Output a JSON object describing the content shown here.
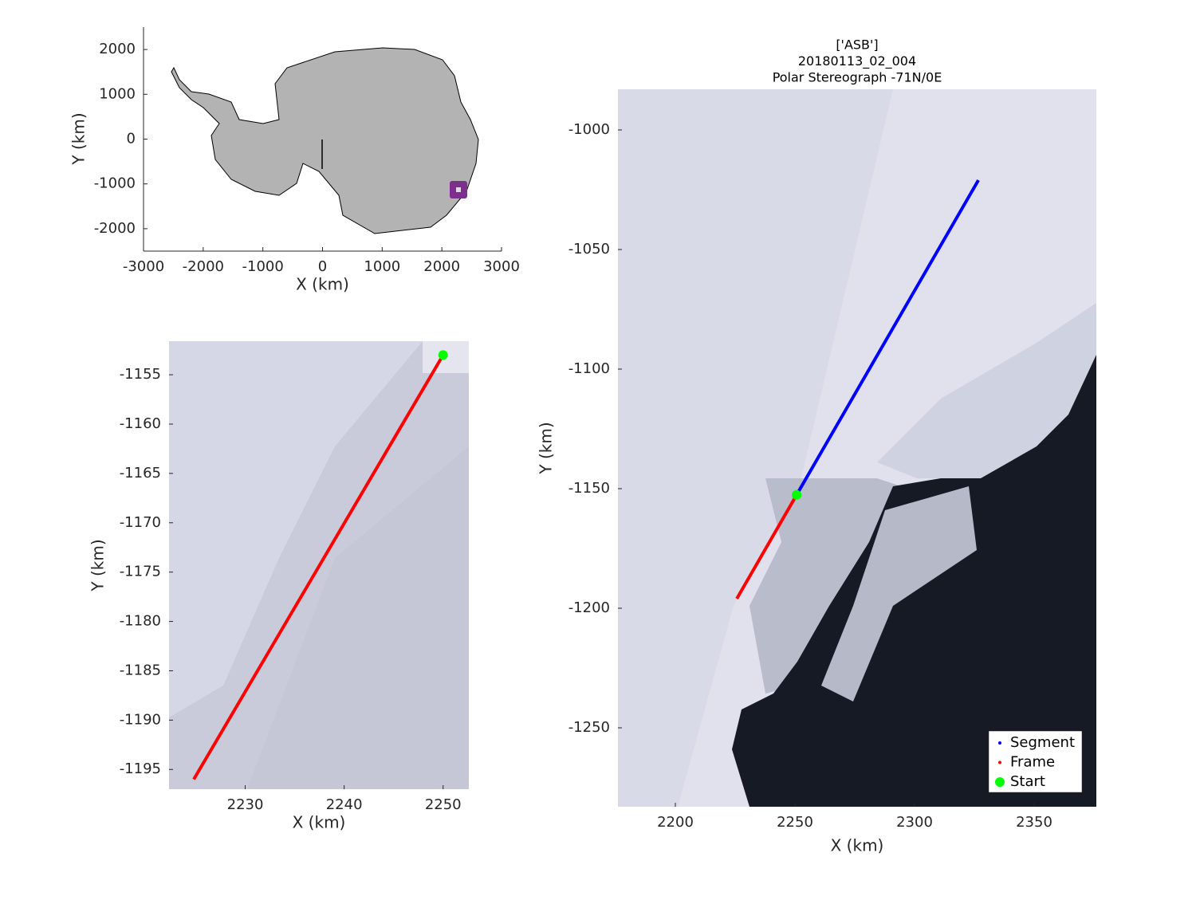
{
  "chart_data": [
    {
      "type": "map",
      "xlabel": "X (km)",
      "ylabel": "Y (km)",
      "xlim": [
        -3000,
        3000
      ],
      "ylim": [
        -2500,
        2500
      ],
      "xticks": [
        -3000,
        -2000,
        -1000,
        0,
        1000,
        2000,
        3000
      ],
      "yticks": [
        -2000,
        -1000,
        0,
        1000,
        2000
      ],
      "land_color": "#b3b3b3"
    },
    {
      "type": "line",
      "xlabel": "X (km)",
      "ylabel": "Y (km)",
      "xlim": [
        2222.3,
        2252.6
      ],
      "ylim": [
        -1197,
        -1151.6
      ],
      "xticks": [
        2230,
        2240,
        2250
      ],
      "yticks": [
        -1155,
        -1160,
        -1165,
        -1170,
        -1175,
        -1180,
        -1185,
        -1190,
        -1195
      ],
      "series": [
        {
          "name": "Frame",
          "color": "#ff0000",
          "x": [
            2224.8,
            2250
          ],
          "values": [
            -1196,
            -1153
          ]
        },
        {
          "name": "Start",
          "color": "#00ff00",
          "x": [
            2250
          ],
          "values": [
            -1153
          ],
          "marker": true
        }
      ]
    },
    {
      "type": "line",
      "title": [
        "['ASB']",
        "20180113_02_004",
        "Polar Stereograph -71N/0E"
      ],
      "xlabel": "X (km)",
      "ylabel": "Y (km)",
      "xlim": [
        2176,
        2376
      ],
      "ylim": [
        -1283,
        -983
      ],
      "xticks": [
        2200,
        2250,
        2300,
        2350
      ],
      "yticks": [
        -1000,
        -1050,
        -1100,
        -1150,
        -1200,
        -1250
      ],
      "legend": "southeast",
      "series": [
        {
          "name": "Segment",
          "color": "#0000ff",
          "x": [
            2250.7,
            2326.7
          ],
          "values": [
            -1152.6,
            -1021
          ]
        },
        {
          "name": "Frame",
          "color": "#ff0000",
          "x": [
            2225.7,
            2250.7
          ],
          "values": [
            -1196,
            -1152.6
          ]
        },
        {
          "name": "Start",
          "color": "#00ff00",
          "x": [
            2250.7
          ],
          "values": [
            -1152.6
          ],
          "marker": true
        }
      ]
    }
  ]
}
